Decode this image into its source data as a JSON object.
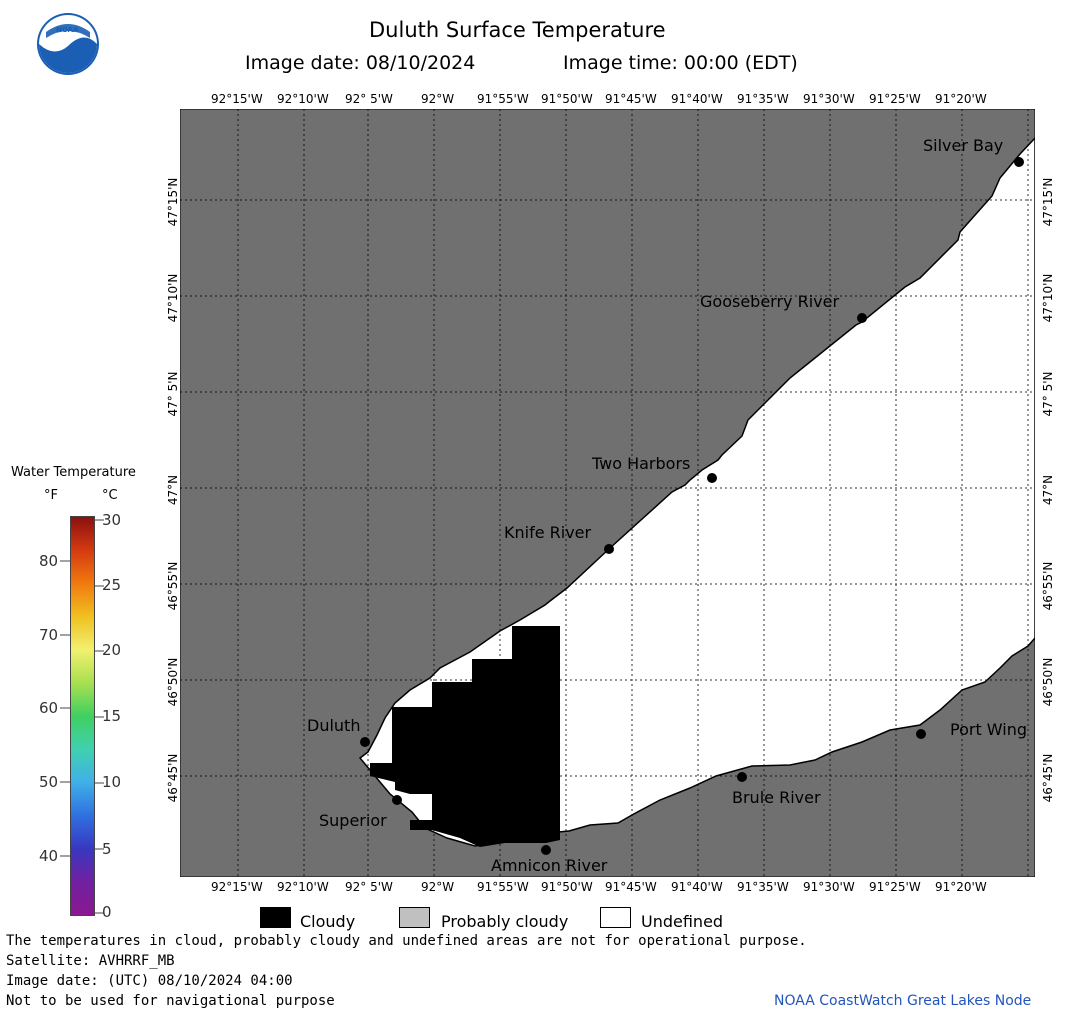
{
  "header": {
    "title": "Duluth Surface Temperature",
    "image_date": "Image date: 08/10/2024",
    "image_time": "Image time: 00:00 (EDT)"
  },
  "logo": {
    "text": "NOAA"
  },
  "map": {
    "colors": {
      "land": "#707070",
      "water_undefined": "#ffffff",
      "cloudy": "#000000",
      "grid": "#000000"
    },
    "lon_labels": [
      "92°15'W",
      "92°10'W",
      "92° 5'W",
      "92°W",
      "91°55'W",
      "91°50'W",
      "91°45'W",
      "91°40'W",
      "91°35'W",
      "91°30'W",
      "91°25'W",
      "91°20'W"
    ],
    "lon_labels_bottom": [
      "92°15'W",
      "92°10'W",
      "92° 5'W",
      "92°W",
      "91°55'W",
      "91°50'W",
      "91°45'W",
      "91°40'W",
      "91°35'W",
      "91°30'W",
      "91°25'W",
      "91°20'W"
    ],
    "lat_labels": [
      "47°15'N",
      "47°10'N",
      "47° 5'N",
      "47°N",
      "46°55'N",
      "46°50'N",
      "46°45'N"
    ],
    "places": [
      {
        "name": "Silver Bay"
      },
      {
        "name": "Gooseberry River"
      },
      {
        "name": "Two Harbors"
      },
      {
        "name": "Knife River"
      },
      {
        "name": "Duluth"
      },
      {
        "name": "Superior"
      },
      {
        "name": "Amnicon River"
      },
      {
        "name": "Brule River"
      },
      {
        "name": "Port Wing"
      }
    ]
  },
  "colorbar": {
    "title": "Water Temperature",
    "unit_f": "°F",
    "unit_c": "°C",
    "f_ticks": [
      "80",
      "70",
      "60",
      "50",
      "40"
    ],
    "c_ticks": [
      "30",
      "25",
      "20",
      "15",
      "10",
      "5",
      "0"
    ],
    "gradient": [
      "#8a1010",
      "#d43a10",
      "#f07a10",
      "#f0c020",
      "#f2f070",
      "#a8e050",
      "#40d060",
      "#40d0b0",
      "#40b0e8",
      "#3070e0",
      "#3838c0",
      "#7020a0",
      "#8a1890"
    ]
  },
  "legend": {
    "cloudy": "Cloudy",
    "probably_cloudy": "Probably cloudy",
    "undefined": "Undefined",
    "cloudy_color": "#000000",
    "probably_cloudy_color": "#c0c0c0",
    "undefined_color": "#ffffff"
  },
  "footer": {
    "line1": "The temperatures in cloud, probably cloudy and undefined areas are not for operational purpose.",
    "line2": "Satellite: AVHRRF_MB",
    "line3": "Image date: (UTC) 08/10/2024  04:00",
    "line4": "Not to be used for navigational purpose",
    "credit": "NOAA CoastWatch Great Lakes Node"
  }
}
